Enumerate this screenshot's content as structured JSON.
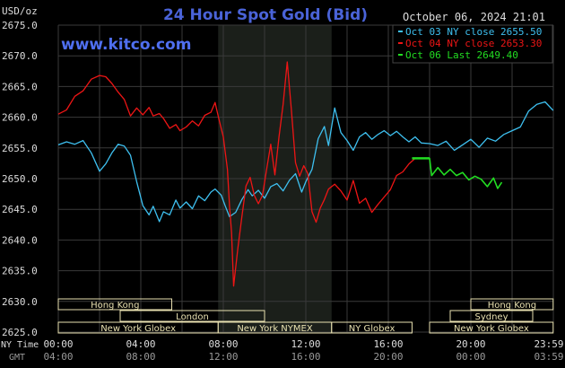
{
  "header": {
    "title": "24 Hour Spot Gold (Bid)",
    "unit": "USD/oz",
    "date": "October 06, 2024 21:01",
    "brand": "www.kitco.com"
  },
  "colors": {
    "background": "#000000",
    "grid": "#3a3a3a",
    "axis_text": "#dddddd",
    "title": "#4a63d8",
    "cyan": "#3ec0f0",
    "red": "#ee1515",
    "green": "#22dd22",
    "session_box": "#e8e0b0",
    "highlight": "#1b1f1a"
  },
  "chart_data": {
    "type": "line",
    "title": "24 Hour Spot Gold (Bid)",
    "ylabel": "USD/oz",
    "ylim": [
      2625,
      2675
    ],
    "yticks": [
      "2675.0",
      "2670.0",
      "2665.0",
      "2660.0",
      "2655.0",
      "2650.0",
      "2645.0",
      "2640.0",
      "2635.0",
      "2630.0",
      "2625.0"
    ],
    "ny_time_label": "NY Time",
    "gmt_label": "GMT",
    "x_ticks_ny": [
      "00:00",
      "04:00",
      "08:00",
      "12:00",
      "16:00",
      "20:00",
      "23:59"
    ],
    "x_ticks_gmt": [
      "04:00",
      "08:00",
      "12:00",
      "16:00",
      "20:00",
      "00:00",
      "03:59"
    ],
    "grid": true,
    "legend_position": "top-right",
    "legend": [
      {
        "label": "Oct 03 NY close 2655.50",
        "color": "#3ec0f0"
      },
      {
        "label": "Oct 04 NY close 2653.30",
        "color": "#ee1515"
      },
      {
        "label": "Oct 06 Last 2649.40",
        "color": "#22dd22"
      }
    ],
    "highlight_hours": [
      7.75,
      13.25
    ],
    "series": [
      {
        "name": "Oct 03",
        "color": "#3ec0f0",
        "points": [
          [
            0,
            2655.5
          ],
          [
            0.4,
            2656
          ],
          [
            0.8,
            2655.6
          ],
          [
            1.2,
            2656.2
          ],
          [
            1.6,
            2654.2
          ],
          [
            2.0,
            2651.2
          ],
          [
            2.3,
            2652.4
          ],
          [
            2.6,
            2654.2
          ],
          [
            2.9,
            2655.6
          ],
          [
            3.2,
            2655.3
          ],
          [
            3.5,
            2653.8
          ],
          [
            3.8,
            2649.5
          ],
          [
            4.1,
            2645.6
          ],
          [
            4.4,
            2644.1
          ],
          [
            4.6,
            2645.5
          ],
          [
            4.9,
            2643
          ],
          [
            5.1,
            2644.6
          ],
          [
            5.4,
            2644.1
          ],
          [
            5.7,
            2646.5
          ],
          [
            5.9,
            2645.2
          ],
          [
            6.2,
            2646.2
          ],
          [
            6.5,
            2645.1
          ],
          [
            6.8,
            2647.2
          ],
          [
            7.1,
            2646.4
          ],
          [
            7.4,
            2647.8
          ],
          [
            7.6,
            2648.3
          ],
          [
            7.9,
            2647.3
          ],
          [
            8.1,
            2645.5
          ],
          [
            8.3,
            2643.8
          ],
          [
            8.6,
            2644.5
          ],
          [
            8.9,
            2646.6
          ],
          [
            9.2,
            2648.2
          ],
          [
            9.4,
            2647.2
          ],
          [
            9.7,
            2648.1
          ],
          [
            10.0,
            2646.8
          ],
          [
            10.3,
            2648.7
          ],
          [
            10.6,
            2649.2
          ],
          [
            10.9,
            2648
          ],
          [
            11.2,
            2649.7
          ],
          [
            11.5,
            2650.8
          ],
          [
            11.8,
            2647.8
          ],
          [
            12.0,
            2649.5
          ],
          [
            12.3,
            2651.5
          ],
          [
            12.6,
            2656.5
          ],
          [
            12.9,
            2658.5
          ],
          [
            13.1,
            2655.4
          ],
          [
            13.4,
            2661.5
          ],
          [
            13.7,
            2657.5
          ],
          [
            14.0,
            2656.2
          ],
          [
            14.3,
            2654.6
          ],
          [
            14.6,
            2656.8
          ],
          [
            14.9,
            2657.5
          ],
          [
            15.2,
            2656.4
          ],
          [
            15.5,
            2657.2
          ],
          [
            15.8,
            2657.8
          ],
          [
            16.1,
            2657
          ],
          [
            16.4,
            2657.7
          ],
          [
            16.7,
            2656.8
          ],
          [
            17.0,
            2656
          ],
          [
            17.3,
            2656.8
          ],
          [
            17.6,
            2655.8
          ],
          [
            18.0,
            2655.7
          ],
          [
            18.4,
            2655.4
          ],
          [
            18.8,
            2656.1
          ],
          [
            19.2,
            2654.6
          ],
          [
            19.6,
            2655.5
          ],
          [
            20.0,
            2656.4
          ],
          [
            20.4,
            2655.1
          ],
          [
            20.8,
            2656.6
          ],
          [
            21.2,
            2656.1
          ],
          [
            21.6,
            2657.2
          ],
          [
            22.0,
            2657.8
          ],
          [
            22.4,
            2658.4
          ],
          [
            22.8,
            2661
          ],
          [
            23.2,
            2662.1
          ],
          [
            23.6,
            2662.5
          ],
          [
            23.99,
            2661.1
          ]
        ]
      },
      {
        "name": "Oct 04",
        "color": "#ee1515",
        "points": [
          [
            0,
            2660.5
          ],
          [
            0.4,
            2661.2
          ],
          [
            0.8,
            2663.4
          ],
          [
            1.2,
            2664.3
          ],
          [
            1.6,
            2666.2
          ],
          [
            2.0,
            2666.8
          ],
          [
            2.3,
            2666.6
          ],
          [
            2.6,
            2665.5
          ],
          [
            2.9,
            2664.1
          ],
          [
            3.2,
            2662.9
          ],
          [
            3.5,
            2660.2
          ],
          [
            3.8,
            2661.5
          ],
          [
            4.1,
            2660.4
          ],
          [
            4.4,
            2661.6
          ],
          [
            4.6,
            2660.2
          ],
          [
            4.9,
            2660.6
          ],
          [
            5.1,
            2659.8
          ],
          [
            5.4,
            2658.2
          ],
          [
            5.7,
            2658.8
          ],
          [
            5.9,
            2657.8
          ],
          [
            6.2,
            2658.4
          ],
          [
            6.5,
            2659.4
          ],
          [
            6.8,
            2658.6
          ],
          [
            7.1,
            2660.3
          ],
          [
            7.4,
            2660.8
          ],
          [
            7.6,
            2662.4
          ],
          [
            7.8,
            2659.5
          ],
          [
            8.0,
            2656.8
          ],
          [
            8.2,
            2651.5
          ],
          [
            8.3,
            2645.6
          ],
          [
            8.4,
            2641.2
          ],
          [
            8.5,
            2632.5
          ],
          [
            8.7,
            2638.5
          ],
          [
            8.9,
            2643.8
          ],
          [
            9.1,
            2648.8
          ],
          [
            9.3,
            2650.2
          ],
          [
            9.5,
            2647.3
          ],
          [
            9.7,
            2645.9
          ],
          [
            9.9,
            2647.3
          ],
          [
            10.1,
            2651.5
          ],
          [
            10.3,
            2655.6
          ],
          [
            10.5,
            2650.6
          ],
          [
            10.7,
            2656.8
          ],
          [
            10.9,
            2662.1
          ],
          [
            11.1,
            2669
          ],
          [
            11.3,
            2661.2
          ],
          [
            11.5,
            2652.6
          ],
          [
            11.7,
            2650.4
          ],
          [
            11.9,
            2652.1
          ],
          [
            12.1,
            2650.8
          ],
          [
            12.3,
            2644.6
          ],
          [
            12.5,
            2642.9
          ],
          [
            12.7,
            2645.2
          ],
          [
            12.9,
            2646.6
          ],
          [
            13.1,
            2648.3
          ],
          [
            13.4,
            2649.1
          ],
          [
            13.7,
            2648
          ],
          [
            14.0,
            2646.5
          ],
          [
            14.3,
            2649.7
          ],
          [
            14.6,
            2646
          ],
          [
            14.9,
            2646.8
          ],
          [
            15.2,
            2644.5
          ],
          [
            15.5,
            2645.8
          ],
          [
            15.8,
            2647
          ],
          [
            16.1,
            2648.2
          ],
          [
            16.4,
            2650.5
          ],
          [
            16.7,
            2651.1
          ],
          [
            17.0,
            2652.4
          ],
          [
            17.3,
            2653.3
          ],
          [
            17.6,
            2653.3
          ]
        ]
      },
      {
        "name": "Oct 06",
        "color": "#22dd22",
        "points": [
          [
            17.6,
            2653.3
          ],
          [
            18.0,
            2653.3
          ],
          [
            18.1,
            2650.5
          ],
          [
            18.4,
            2651.8
          ],
          [
            18.7,
            2650.6
          ],
          [
            19.0,
            2651.5
          ],
          [
            19.3,
            2650.5
          ],
          [
            19.6,
            2651
          ],
          [
            19.9,
            2649.8
          ],
          [
            20.2,
            2650.4
          ],
          [
            20.5,
            2649.9
          ],
          [
            20.8,
            2648.7
          ],
          [
            21.1,
            2650.1
          ],
          [
            21.3,
            2648.4
          ],
          [
            21.5,
            2649.4
          ]
        ]
      }
    ],
    "sessions": [
      {
        "label": "Hong Kong",
        "row": 0,
        "start": 0,
        "end": 5.5
      },
      {
        "label": "London",
        "row": 1,
        "start": 3,
        "end": 10
      },
      {
        "label": "New York Globex",
        "row": 2,
        "start": 0,
        "end": 7.75
      },
      {
        "label": "New York NYMEX",
        "row": 2,
        "start": 7.75,
        "end": 13.25
      },
      {
        "label": "NY Globex",
        "row": 2,
        "start": 13.25,
        "end": 17.15
      },
      {
        "label": "Hong Kong",
        "row": 0,
        "start": 20.0,
        "end": 23.99
      },
      {
        "label": "Sydney",
        "row": 1,
        "start": 19.0,
        "end": 23.0
      },
      {
        "label": "New York Globex",
        "row": 2,
        "start": 18.0,
        "end": 23.99
      }
    ]
  }
}
